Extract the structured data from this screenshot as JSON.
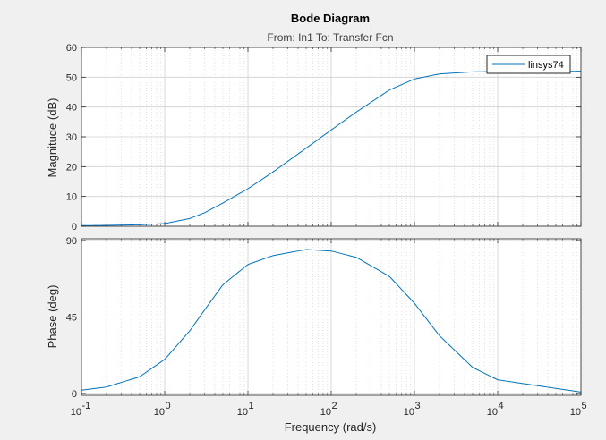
{
  "chart_data": {
    "type": "line",
    "title": "Bode Diagram",
    "subtitle": "From: In1  To: Transfer Fcn",
    "xlabel": "Frequency  (rad/s)",
    "xscale": "log",
    "xlim": [
      0.1,
      100000
    ],
    "x_ticks": [
      {
        "value": 0.1,
        "base": "10",
        "exp": "-1"
      },
      {
        "value": 1,
        "base": "10",
        "exp": "0"
      },
      {
        "value": 10,
        "base": "10",
        "exp": "1"
      },
      {
        "value": 100,
        "base": "10",
        "exp": "2"
      },
      {
        "value": 1000,
        "base": "10",
        "exp": "3"
      },
      {
        "value": 10000,
        "base": "10",
        "exp": "4"
      },
      {
        "value": 100000,
        "base": "10",
        "exp": "5"
      }
    ],
    "grid": true,
    "legend": {
      "entries": [
        "linsys74"
      ],
      "placement": "top-right"
    },
    "line_color": "#0072bd",
    "subplots": [
      {
        "name": "magnitude",
        "ylabel": "Magnitude (dB)",
        "ylim": [
          0,
          60
        ],
        "y_ticks": [
          0,
          10,
          20,
          30,
          40,
          50,
          60
        ],
        "series": [
          {
            "name": "linsys74",
            "x": [
              0.1,
              0.2,
              0.5,
              1,
              2,
              3,
              5,
              10,
              20,
              50,
              100,
              200,
              500,
              1000,
              2000,
              5000,
              10000,
              100000
            ],
            "y": [
              0.2,
              0.3,
              0.5,
              0.9,
              2.6,
              4.5,
              7.8,
              12.6,
              18.2,
              26.2,
              32.3,
              38.3,
              45.7,
              49.4,
              51.1,
              51.8,
              51.9,
              52.0
            ]
          }
        ]
      },
      {
        "name": "phase",
        "ylabel": "Phase (deg)",
        "ylim": [
          -1,
          91
        ],
        "y_ticks": [
          0,
          45,
          90
        ],
        "series": [
          {
            "name": "linsys74",
            "x": [
              0.1,
              0.2,
              0.5,
              1,
              2,
              3,
              5,
              10,
              20,
              50,
              100,
              200,
              500,
              1000,
              2000,
              5000,
              10000,
              100000
            ],
            "y": [
              2.0,
              3.9,
              9.9,
              20.1,
              36.9,
              49.0,
              64.0,
              75.9,
              81.1,
              84.7,
              83.8,
              80.1,
              68.9,
              53.1,
              34.0,
              15.4,
              8.1,
              0.9
            ]
          }
        ]
      }
    ]
  }
}
